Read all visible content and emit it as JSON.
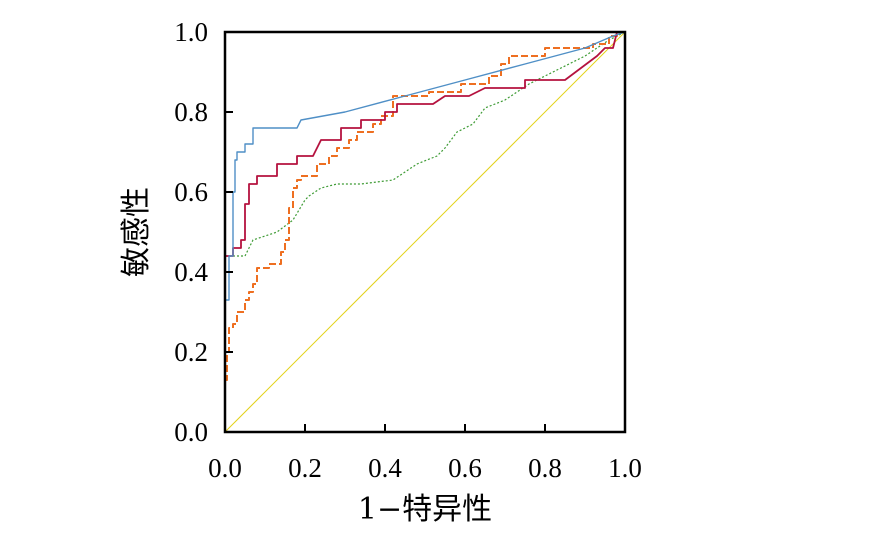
{
  "chart_data": {
    "type": "line",
    "title": "",
    "xlabel": "1−特异性",
    "ylabel": "敏感性",
    "xlim": [
      0,
      1
    ],
    "ylim": [
      0,
      1
    ],
    "x_ticks": [
      "0.0",
      "0.2",
      "0.4",
      "0.6",
      "0.8",
      "1.0"
    ],
    "y_ticks": [
      "0.0",
      "0.2",
      "0.4",
      "0.6",
      "0.8",
      "1.0"
    ],
    "grid": false,
    "legend": "none",
    "series": [
      {
        "color": "#4f8fc6",
        "style": "solid",
        "points": [
          [
            0,
            0.33
          ],
          [
            0.01,
            0.33
          ],
          [
            0.01,
            0.44
          ],
          [
            0.02,
            0.44
          ],
          [
            0.02,
            0.6
          ],
          [
            0.025,
            0.6
          ],
          [
            0.025,
            0.68
          ],
          [
            0.03,
            0.68
          ],
          [
            0.03,
            0.7
          ],
          [
            0.05,
            0.7
          ],
          [
            0.05,
            0.72
          ],
          [
            0.07,
            0.72
          ],
          [
            0.07,
            0.76
          ],
          [
            0.18,
            0.76
          ],
          [
            0.19,
            0.78
          ],
          [
            0.3,
            0.8
          ],
          [
            0.45,
            0.84
          ],
          [
            0.6,
            0.88
          ],
          [
            0.75,
            0.92
          ],
          [
            0.9,
            0.96
          ],
          [
            0.97,
            0.99
          ],
          [
            1,
            1
          ]
        ]
      },
      {
        "color": "#b5123f",
        "style": "solid",
        "points": [
          [
            0,
            0.44
          ],
          [
            0.02,
            0.44
          ],
          [
            0.02,
            0.46
          ],
          [
            0.04,
            0.46
          ],
          [
            0.04,
            0.48
          ],
          [
            0.05,
            0.48
          ],
          [
            0.05,
            0.57
          ],
          [
            0.06,
            0.57
          ],
          [
            0.06,
            0.62
          ],
          [
            0.08,
            0.62
          ],
          [
            0.08,
            0.64
          ],
          [
            0.13,
            0.64
          ],
          [
            0.13,
            0.67
          ],
          [
            0.18,
            0.67
          ],
          [
            0.18,
            0.69
          ],
          [
            0.22,
            0.69
          ],
          [
            0.24,
            0.73
          ],
          [
            0.29,
            0.73
          ],
          [
            0.29,
            0.76
          ],
          [
            0.34,
            0.76
          ],
          [
            0.34,
            0.78
          ],
          [
            0.4,
            0.78
          ],
          [
            0.4,
            0.8
          ],
          [
            0.43,
            0.8
          ],
          [
            0.43,
            0.82
          ],
          [
            0.52,
            0.82
          ],
          [
            0.55,
            0.84
          ],
          [
            0.61,
            0.84
          ],
          [
            0.65,
            0.86
          ],
          [
            0.75,
            0.86
          ],
          [
            0.75,
            0.88
          ],
          [
            0.85,
            0.88
          ],
          [
            0.93,
            0.94
          ],
          [
            0.95,
            0.96
          ],
          [
            0.97,
            0.96
          ],
          [
            0.98,
            1
          ],
          [
            1,
            1
          ]
        ]
      },
      {
        "color": "#ee6f21",
        "style": "dashed",
        "points": [
          [
            0,
            0.13
          ],
          [
            0.005,
            0.13
          ],
          [
            0.005,
            0.2
          ],
          [
            0.01,
            0.2
          ],
          [
            0.01,
            0.26
          ],
          [
            0.02,
            0.26
          ],
          [
            0.02,
            0.27
          ],
          [
            0.03,
            0.27
          ],
          [
            0.03,
            0.3
          ],
          [
            0.05,
            0.3
          ],
          [
            0.05,
            0.33
          ],
          [
            0.06,
            0.33
          ],
          [
            0.06,
            0.35
          ],
          [
            0.07,
            0.35
          ],
          [
            0.07,
            0.37
          ],
          [
            0.08,
            0.37
          ],
          [
            0.08,
            0.41
          ],
          [
            0.11,
            0.41
          ],
          [
            0.11,
            0.42
          ],
          [
            0.14,
            0.42
          ],
          [
            0.14,
            0.45
          ],
          [
            0.15,
            0.45
          ],
          [
            0.15,
            0.48
          ],
          [
            0.16,
            0.48
          ],
          [
            0.16,
            0.56
          ],
          [
            0.17,
            0.56
          ],
          [
            0.17,
            0.61
          ],
          [
            0.18,
            0.61
          ],
          [
            0.18,
            0.63
          ],
          [
            0.19,
            0.63
          ],
          [
            0.19,
            0.64
          ],
          [
            0.23,
            0.64
          ],
          [
            0.23,
            0.67
          ],
          [
            0.26,
            0.67
          ],
          [
            0.26,
            0.69
          ],
          [
            0.28,
            0.69
          ],
          [
            0.28,
            0.71
          ],
          [
            0.31,
            0.71
          ],
          [
            0.31,
            0.73
          ],
          [
            0.33,
            0.73
          ],
          [
            0.33,
            0.75
          ],
          [
            0.37,
            0.75
          ],
          [
            0.37,
            0.77
          ],
          [
            0.39,
            0.77
          ],
          [
            0.39,
            0.79
          ],
          [
            0.42,
            0.79
          ],
          [
            0.42,
            0.84
          ],
          [
            0.51,
            0.84
          ],
          [
            0.51,
            0.85
          ],
          [
            0.59,
            0.85
          ],
          [
            0.59,
            0.87
          ],
          [
            0.66,
            0.87
          ],
          [
            0.66,
            0.89
          ],
          [
            0.69,
            0.89
          ],
          [
            0.69,
            0.92
          ],
          [
            0.71,
            0.92
          ],
          [
            0.71,
            0.94
          ],
          [
            0.8,
            0.94
          ],
          [
            0.8,
            0.96
          ],
          [
            0.92,
            0.96
          ],
          [
            0.92,
            0.97
          ],
          [
            0.96,
            0.97
          ],
          [
            0.96,
            0.99
          ],
          [
            0.98,
            0.99
          ],
          [
            0.98,
            1
          ],
          [
            1,
            1
          ]
        ]
      },
      {
        "color": "#3e9b35",
        "style": "dotted",
        "points": [
          [
            0,
            0.44
          ],
          [
            0.01,
            0.44
          ],
          [
            0.05,
            0.44
          ],
          [
            0.07,
            0.48
          ],
          [
            0.1,
            0.49
          ],
          [
            0.13,
            0.5
          ],
          [
            0.17,
            0.53
          ],
          [
            0.2,
            0.58
          ],
          [
            0.21,
            0.59
          ],
          [
            0.24,
            0.61
          ],
          [
            0.28,
            0.62
          ],
          [
            0.34,
            0.62
          ],
          [
            0.42,
            0.63
          ],
          [
            0.45,
            0.65
          ],
          [
            0.48,
            0.67
          ],
          [
            0.53,
            0.69
          ],
          [
            0.55,
            0.71
          ],
          [
            0.58,
            0.75
          ],
          [
            0.62,
            0.77
          ],
          [
            0.65,
            0.81
          ],
          [
            0.7,
            0.83
          ],
          [
            0.76,
            0.87
          ],
          [
            0.82,
            0.9
          ],
          [
            0.9,
            0.94
          ],
          [
            0.96,
            0.98
          ],
          [
            1,
            1
          ]
        ]
      },
      {
        "color": "#e3d21a",
        "style": "solid",
        "points": [
          [
            0,
            0
          ],
          [
            1,
            1
          ]
        ]
      }
    ]
  }
}
